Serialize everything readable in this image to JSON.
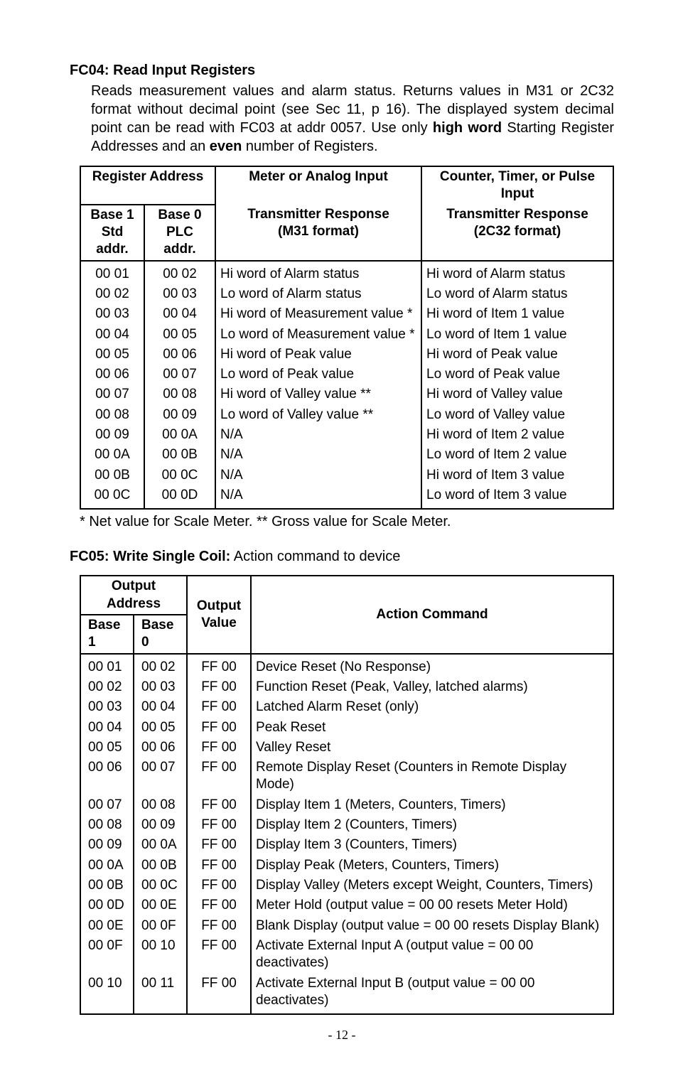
{
  "fc04": {
    "title": "FC04: Read Input Registers",
    "desc_parts": [
      "Reads measurement values and alarm status. Returns values in M31 or 2C32 format without decimal point (see Sec 11, p 16). The displayed system decimal point can be read with FC03 at addr 0057. Use only ",
      "high word",
      " Starting Register Addresses and an ",
      "even",
      " number of Registers."
    ],
    "table": {
      "col_widths": [
        "90px",
        "100px",
        "290px",
        ""
      ],
      "headers": {
        "reg_addr": "Register Address",
        "meter": "Meter or Analog Input",
        "counter": "Counter, Timer, or Pulse Input",
        "base1": "Base 1",
        "std_addr": "Std addr.",
        "base0": "Base 0",
        "plc_addr": "PLC addr.",
        "trans_m31_l1": "Transmitter Response",
        "trans_m31_l2": "(M31 format)",
        "trans_2c32_l1": "Transmitter Response",
        "trans_2c32_l2": "(2C32 format)"
      },
      "rows": [
        {
          "b1": "00 01",
          "b0": "00 02",
          "m": "Hi word of Alarm status",
          "c": "Hi word of Alarm status"
        },
        {
          "b1": "00 02",
          "b0": "00 03",
          "m": "Lo word of Alarm status",
          "c": "Lo word of Alarm status"
        },
        {
          "b1": "00 03",
          "b0": "00 04",
          "m": "Hi word of Measurement value *",
          "c": "Hi word of Item 1 value"
        },
        {
          "b1": "00 04",
          "b0": "00 05",
          "m": "Lo word of Measurement value *",
          "c": "Lo word of Item 1 value"
        },
        {
          "b1": "00 05",
          "b0": "00 06",
          "m": "Hi word of Peak value",
          "c": "Hi word of Peak value"
        },
        {
          "b1": "00 06",
          "b0": "00 07",
          "m": "Lo word of Peak value",
          "c": "Lo word of Peak value"
        },
        {
          "b1": "00 07",
          "b0": "00 08",
          "m": "Hi word of Valley value **",
          "c": "Hi word of Valley value"
        },
        {
          "b1": "00 08",
          "b0": "00 09",
          "m": "Lo word of Valley value **",
          "c": "Lo word of Valley value"
        },
        {
          "b1": "00 09",
          "b0": "00 0A",
          "m": "N/A",
          "c": "Hi word of Item 2  value"
        },
        {
          "b1": "00 0A",
          "b0": "00 0B",
          "m": "N/A",
          "c": "Lo word of Item 2  value"
        },
        {
          "b1": "00 0B",
          "b0": "00 0C",
          "m": "N/A",
          "c": "Hi word of Item 3  value"
        },
        {
          "b1": "00 0C",
          "b0": "00 0D",
          "m": "N/A",
          "c": "Lo word of Item 3  value"
        }
      ],
      "footnote": "* Net value for Scale Meter.    ** Gross value for Scale Meter."
    }
  },
  "fc05": {
    "title_bold": "FC05: Write Single Coil:",
    "title_rest": "  Action command to device",
    "table": {
      "col_widths": [
        "75px",
        "75px",
        "90px",
        ""
      ],
      "headers": {
        "output_addr": "Output Address",
        "output_l1": "Output",
        "output_l2": "Value",
        "action": "Action Command",
        "base1": "Base 1",
        "base0": "Base 0"
      },
      "rows": [
        {
          "b1": "00 01",
          "b0": "00 02",
          "v": "FF 00",
          "a": "Device Reset  (No Response)"
        },
        {
          "b1": "00 02",
          "b0": "00 03",
          "v": "FF 00",
          "a": "Function Reset (Peak, Valley, latched alarms)"
        },
        {
          "b1": "00 03",
          "b0": "00 04",
          "v": "FF 00",
          "a": "Latched Alarm Reset (only)"
        },
        {
          "b1": "00 04",
          "b0": "00 05",
          "v": "FF 00",
          "a": "Peak Reset"
        },
        {
          "b1": "00 05",
          "b0": "00 06",
          "v": "FF 00",
          "a": "Valley Reset"
        },
        {
          "b1": "00 06",
          "b0": "00 07",
          "v": "FF 00",
          "a": "Remote Display Reset (Counters in Remote Display Mode)"
        },
        {
          "b1": "00 07",
          "b0": "00 08",
          "v": "FF 00",
          "a": "Display Item 1 (Meters, Counters, Timers)"
        },
        {
          "b1": "00 08",
          "b0": "00 09",
          "v": "FF 00",
          "a": "Display Item 2 (Counters, Timers)"
        },
        {
          "b1": "00 09",
          "b0": "00 0A",
          "v": "FF 00",
          "a": "Display Item 3 (Counters, Timers)"
        },
        {
          "b1": "00 0A",
          "b0": "00 0B",
          "v": "FF 00",
          "a": "Display Peak (Meters, Counters, Timers)"
        },
        {
          "b1": "00 0B",
          "b0": "00 0C",
          "v": "FF 00",
          "a": "Display Valley (Meters except Weight, Counters, Timers)"
        },
        {
          "b1": "00 0D",
          "b0": "00 0E",
          "v": "FF 00",
          "a": "Meter Hold (output value  =  00 00 resets Meter Hold)"
        },
        {
          "b1": "00 0E",
          "b0": "00 0F",
          "v": "FF 00",
          "a": "Blank Display (output value  =  00 00 resets Display Blank)"
        },
        {
          "b1": "00 0F",
          "b0": "00 10",
          "v": "FF 00",
          "a": "Activate External Input A (output value  =  00 00 deactivates)"
        },
        {
          "b1": "00 10",
          "b0": "00 11",
          "v": "FF 00",
          "a": "Activate External Input B (output value  =  00 00 deactivates)"
        }
      ]
    }
  },
  "page_number": "- 12 -"
}
